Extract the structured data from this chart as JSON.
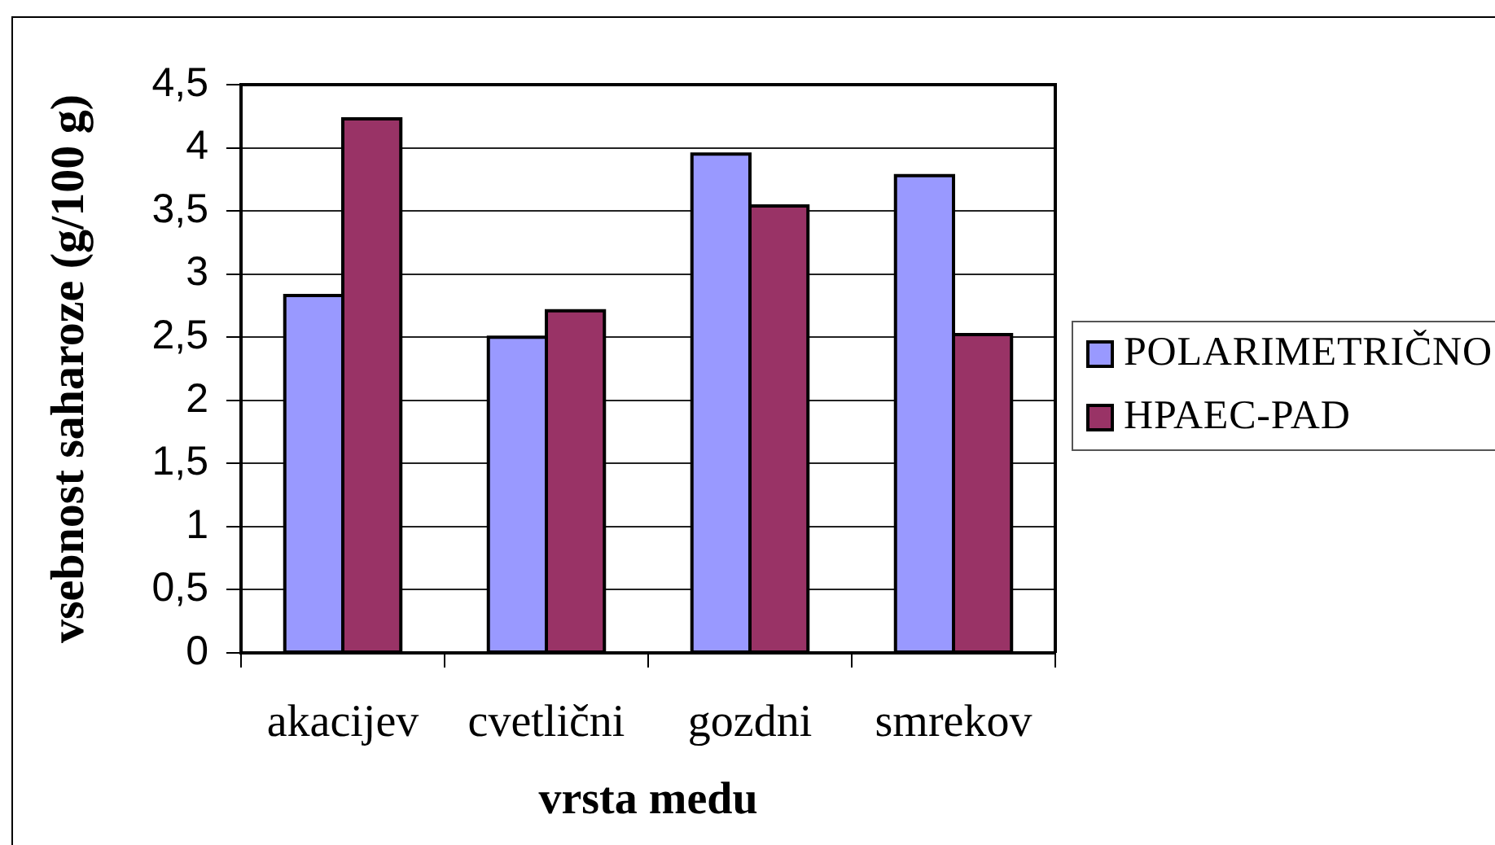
{
  "chart_data": {
    "type": "bar",
    "xlabel": "vrsta medu",
    "ylabel": "vsebnost saharoze (g/100 g)",
    "categories": [
      "akacijev",
      "cvetlični",
      "gozdni",
      "smrekov"
    ],
    "series": [
      {
        "name": "POLARIMETRIČNO",
        "color": "#9999ff",
        "values": [
          2.83,
          2.5,
          3.95,
          3.78
        ]
      },
      {
        "name": "HPAEC-PAD",
        "color": "#993366",
        "values": [
          4.23,
          2.71,
          3.54,
          2.52
        ]
      }
    ],
    "ylim": [
      0,
      4.5
    ],
    "yticks": [
      0,
      {
        "value": 0.5,
        "label": "0,5"
      },
      1,
      {
        "value": 1.5,
        "label": "1,5"
      },
      2,
      {
        "value": 2.5,
        "label": "2,5"
      },
      3,
      {
        "value": 3.5,
        "label": "3,5"
      },
      4,
      {
        "value": 4.5,
        "label": "4,5"
      }
    ],
    "grid": "y",
    "legend": "right"
  }
}
